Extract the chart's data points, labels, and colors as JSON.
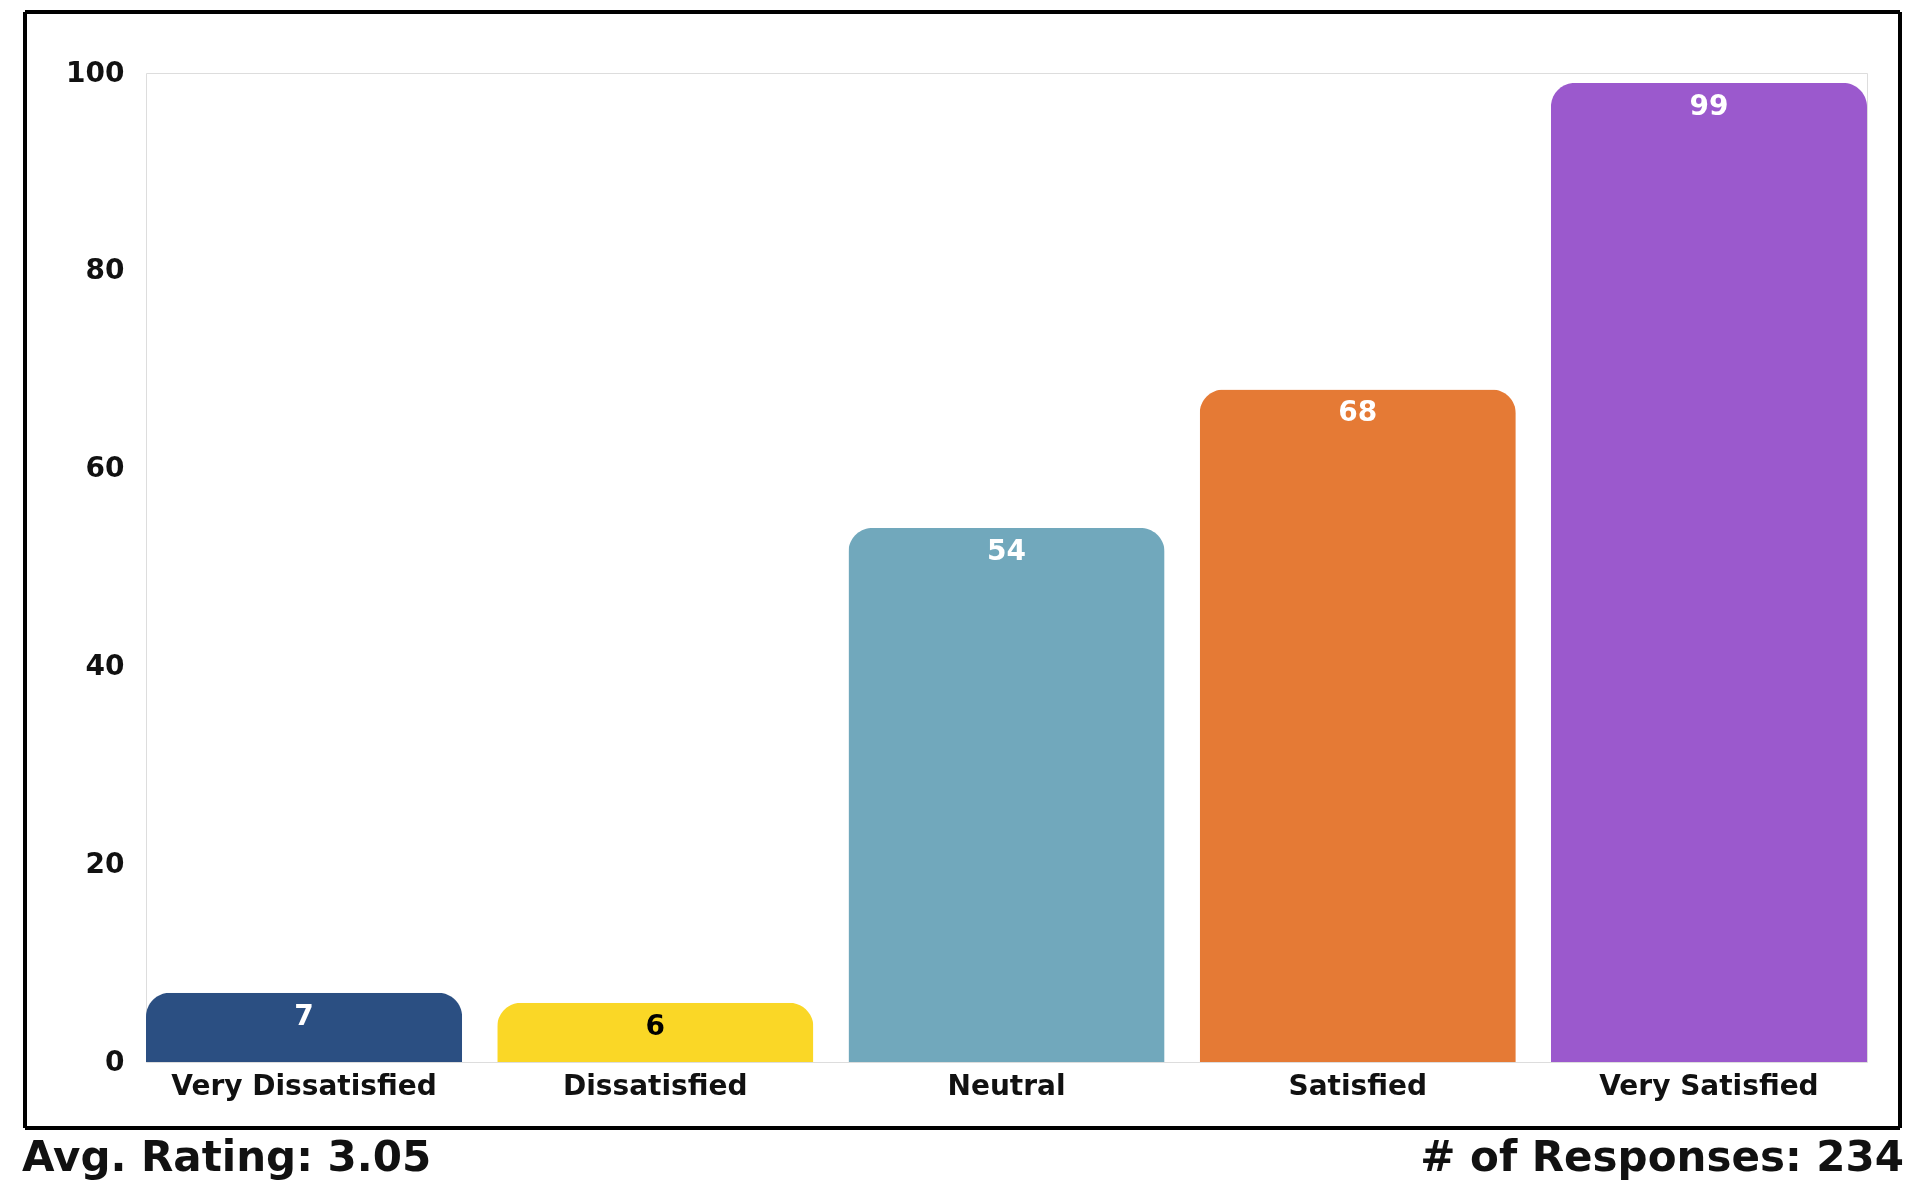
{
  "chart_data": {
    "type": "bar",
    "categories": [
      "Very Dissatisfied",
      "Dissatisfied",
      "Neutral",
      "Satisfied",
      "Very Satisfied"
    ],
    "values": [
      7,
      6,
      54,
      68,
      99
    ],
    "colors": [
      "#2b4f82",
      "#fad726",
      "#71a8bc",
      "#e57a35",
      "#9b59cd"
    ],
    "ylim": [
      0,
      100
    ],
    "yticks": [
      0,
      20,
      40,
      60,
      80,
      100
    ],
    "grid": false,
    "data_labels": true,
    "annotations": [
      "Avg. Rating: 3.05",
      "# of Responses: 234"
    ]
  }
}
